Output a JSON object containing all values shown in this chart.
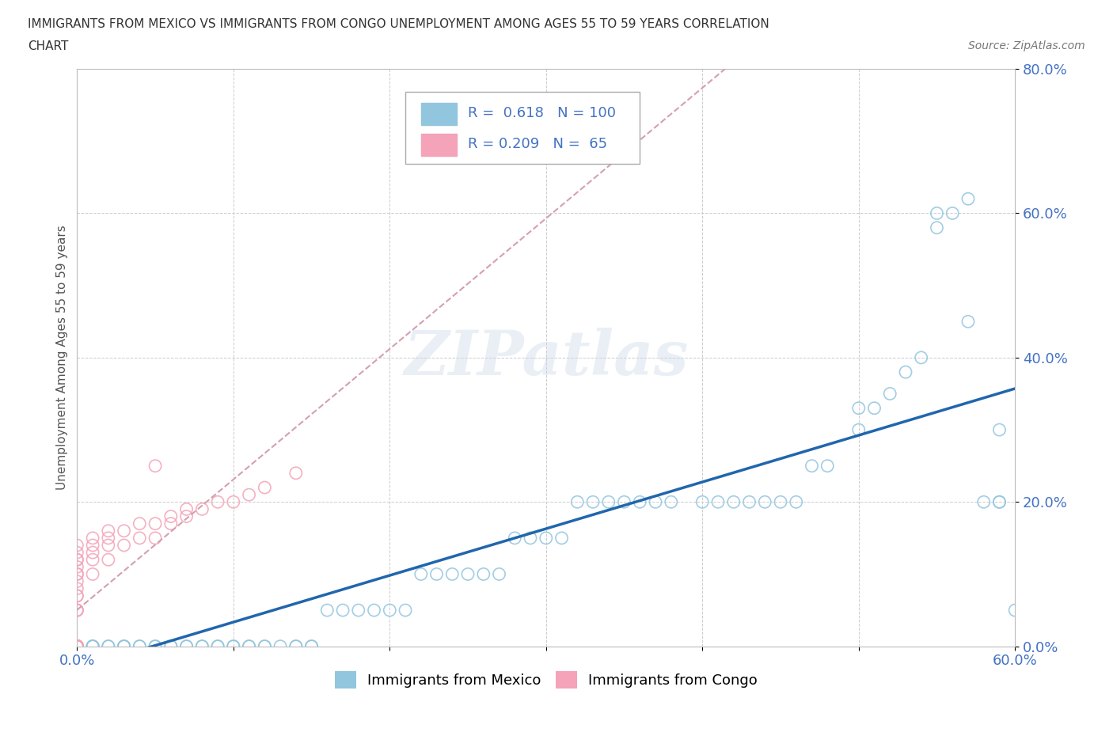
{
  "title_line1": "IMMIGRANTS FROM MEXICO VS IMMIGRANTS FROM CONGO UNEMPLOYMENT AMONG AGES 55 TO 59 YEARS CORRELATION",
  "title_line2": "CHART",
  "source": "Source: ZipAtlas.com",
  "ylabel": "Unemployment Among Ages 55 to 59 years",
  "xlim": [
    0,
    0.6
  ],
  "ylim": [
    0,
    0.8
  ],
  "xtick_positions": [
    0.0,
    0.1,
    0.2,
    0.3,
    0.4,
    0.5,
    0.6
  ],
  "xtick_labels": [
    "0.0%",
    "",
    "",
    "",
    "",
    "",
    "60.0%"
  ],
  "ytick_positions": [
    0.0,
    0.2,
    0.4,
    0.6,
    0.8
  ],
  "ytick_labels": [
    "0.0%",
    "20.0%",
    "40.0%",
    "60.0%",
    "80.0%"
  ],
  "mexico_color": "#92c5de",
  "congo_color": "#f4a3b8",
  "mexico_R": 0.618,
  "mexico_N": 100,
  "congo_R": 0.209,
  "congo_N": 65,
  "watermark": "ZIPatlas",
  "background_color": "#ffffff",
  "grid_color": "#cccccc",
  "tick_color": "#4472c4",
  "legend_R_N_color": "#4472c4",
  "mexico_line_color": "#2166ac",
  "congo_line_color": "#f4a3b8",
  "mexico_x": [
    0.0,
    0.0,
    0.0,
    0.0,
    0.0,
    0.0,
    0.0,
    0.0,
    0.0,
    0.0,
    0.0,
    0.0,
    0.0,
    0.0,
    0.0,
    0.0,
    0.0,
    0.0,
    0.0,
    0.0,
    0.01,
    0.01,
    0.01,
    0.01,
    0.02,
    0.02,
    0.03,
    0.03,
    0.03,
    0.04,
    0.04,
    0.05,
    0.05,
    0.06,
    0.06,
    0.07,
    0.07,
    0.08,
    0.08,
    0.09,
    0.09,
    0.1,
    0.1,
    0.11,
    0.11,
    0.12,
    0.12,
    0.13,
    0.14,
    0.14,
    0.15,
    0.15,
    0.16,
    0.17,
    0.18,
    0.19,
    0.2,
    0.21,
    0.22,
    0.23,
    0.24,
    0.25,
    0.26,
    0.27,
    0.28,
    0.29,
    0.3,
    0.31,
    0.32,
    0.33,
    0.34,
    0.35,
    0.36,
    0.37,
    0.38,
    0.4,
    0.41,
    0.42,
    0.43,
    0.44,
    0.45,
    0.46,
    0.47,
    0.48,
    0.5,
    0.5,
    0.51,
    0.52,
    0.53,
    0.54,
    0.55,
    0.55,
    0.56,
    0.57,
    0.57,
    0.58,
    0.59,
    0.59,
    0.59,
    0.6
  ],
  "mexico_y": [
    0.0,
    0.0,
    0.0,
    0.0,
    0.0,
    0.0,
    0.0,
    0.0,
    0.0,
    0.0,
    0.0,
    0.0,
    0.0,
    0.0,
    0.0,
    0.0,
    0.0,
    0.0,
    0.0,
    0.0,
    0.0,
    0.0,
    0.0,
    0.0,
    0.0,
    0.0,
    0.0,
    0.0,
    0.0,
    0.0,
    0.0,
    0.0,
    0.0,
    0.0,
    0.0,
    0.0,
    0.0,
    0.0,
    0.0,
    0.0,
    0.0,
    0.0,
    0.0,
    0.0,
    0.0,
    0.0,
    0.0,
    0.0,
    0.0,
    0.0,
    0.0,
    0.0,
    0.05,
    0.05,
    0.05,
    0.05,
    0.05,
    0.05,
    0.1,
    0.1,
    0.1,
    0.1,
    0.1,
    0.1,
    0.15,
    0.15,
    0.15,
    0.15,
    0.2,
    0.2,
    0.2,
    0.2,
    0.2,
    0.2,
    0.2,
    0.2,
    0.2,
    0.2,
    0.2,
    0.2,
    0.2,
    0.2,
    0.25,
    0.25,
    0.3,
    0.33,
    0.33,
    0.35,
    0.38,
    0.4,
    0.58,
    0.6,
    0.6,
    0.62,
    0.45,
    0.2,
    0.2,
    0.2,
    0.3,
    0.05
  ],
  "congo_x": [
    0.0,
    0.0,
    0.0,
    0.0,
    0.0,
    0.0,
    0.0,
    0.0,
    0.0,
    0.0,
    0.0,
    0.0,
    0.0,
    0.0,
    0.0,
    0.0,
    0.0,
    0.0,
    0.0,
    0.0,
    0.0,
    0.0,
    0.0,
    0.0,
    0.0,
    0.0,
    0.0,
    0.0,
    0.0,
    0.0,
    0.0,
    0.0,
    0.0,
    0.0,
    0.0,
    0.0,
    0.0,
    0.0,
    0.0,
    0.01,
    0.01,
    0.01,
    0.01,
    0.01,
    0.02,
    0.02,
    0.02,
    0.02,
    0.03,
    0.03,
    0.04,
    0.04,
    0.05,
    0.05,
    0.05,
    0.06,
    0.06,
    0.07,
    0.07,
    0.08,
    0.09,
    0.1,
    0.11,
    0.12,
    0.14
  ],
  "congo_y": [
    0.0,
    0.0,
    0.0,
    0.0,
    0.0,
    0.0,
    0.0,
    0.0,
    0.0,
    0.0,
    0.0,
    0.0,
    0.0,
    0.0,
    0.0,
    0.0,
    0.0,
    0.0,
    0.0,
    0.0,
    0.0,
    0.0,
    0.0,
    0.0,
    0.0,
    0.05,
    0.05,
    0.05,
    0.07,
    0.07,
    0.08,
    0.09,
    0.1,
    0.1,
    0.11,
    0.12,
    0.12,
    0.13,
    0.14,
    0.1,
    0.12,
    0.13,
    0.14,
    0.15,
    0.12,
    0.14,
    0.15,
    0.16,
    0.14,
    0.16,
    0.15,
    0.17,
    0.15,
    0.17,
    0.25,
    0.17,
    0.18,
    0.18,
    0.19,
    0.19,
    0.2,
    0.2,
    0.21,
    0.22,
    0.24
  ]
}
